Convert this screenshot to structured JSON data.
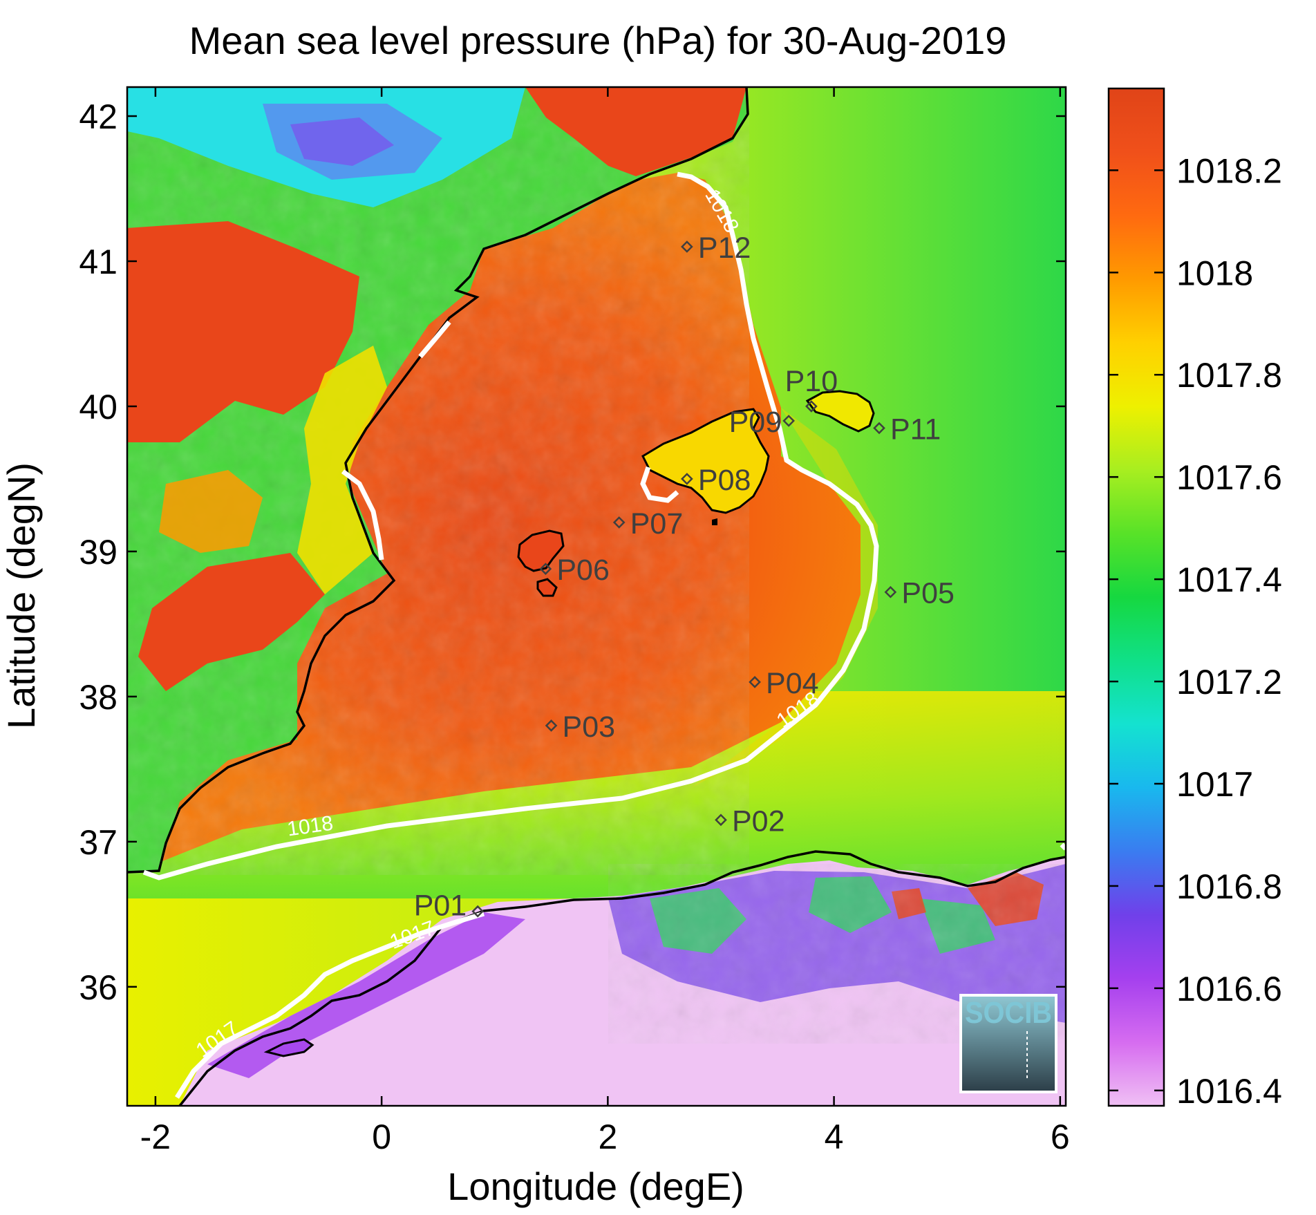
{
  "title": "Mean sea level pressure (hPa) for 30-Aug-2019",
  "xlabel": "Longitude (degE)",
  "ylabel": "Latitude (degN)",
  "x_ticks": [
    "-2",
    "0",
    "2",
    "4",
    "6"
  ],
  "y_ticks": [
    "36",
    "37",
    "38",
    "39",
    "40",
    "41",
    "42"
  ],
  "colorbar": {
    "ticks": [
      "1016.4",
      "1016.6",
      "1016.8",
      "1017",
      "1017.2",
      "1017.4",
      "1017.6",
      "1017.8",
      "1018",
      "1018.2"
    ],
    "range": [
      1016.37,
      1018.36
    ],
    "colors": [
      "#f0c0f4",
      "#d66cf0",
      "#a540ee",
      "#7040ea",
      "#3a7cf0",
      "#19b8ee",
      "#14e2d0",
      "#10e088",
      "#16d840",
      "#58e228",
      "#a8ee20",
      "#eef000",
      "#ffd000",
      "#ff9a00",
      "#ff6a10",
      "#f0501a",
      "#e04418"
    ]
  },
  "contour_labels": [
    "1018",
    "1018",
    "1018",
    "1017",
    "1017"
  ],
  "points": [
    {
      "label": "P01",
      "lon": 0.85,
      "lat": 36.52
    },
    {
      "label": "P02",
      "lon": 3.0,
      "lat": 37.15
    },
    {
      "label": "P03",
      "lon": 1.5,
      "lat": 37.8
    },
    {
      "label": "P04",
      "lon": 3.3,
      "lat": 38.1
    },
    {
      "label": "P05",
      "lon": 4.5,
      "lat": 38.72
    },
    {
      "label": "P06",
      "lon": 1.45,
      "lat": 38.88
    },
    {
      "label": "P07",
      "lon": 2.1,
      "lat": 39.2
    },
    {
      "label": "P08",
      "lon": 2.7,
      "lat": 39.5
    },
    {
      "label": "P09",
      "lon": 3.6,
      "lat": 39.9
    },
    {
      "label": "P10",
      "lon": 3.8,
      "lat": 40.0
    },
    {
      "label": "P11",
      "lon": 4.4,
      "lat": 39.85
    },
    {
      "label": "P12",
      "lon": 2.7,
      "lat": 41.1
    }
  ],
  "chart_data": {
    "type": "heatmap",
    "title": "Mean sea level pressure (hPa) for 30-Aug-2019",
    "xlabel": "Longitude (degE)",
    "ylabel": "Latitude (degN)",
    "xlim": [
      -2.25,
      6.05
    ],
    "ylim": [
      35.18,
      42.2
    ],
    "colorbar_range": [
      1016.37,
      1018.36
    ],
    "contours": [
      1017,
      1018
    ]
  },
  "logo": {
    "text": "SOCIB"
  }
}
